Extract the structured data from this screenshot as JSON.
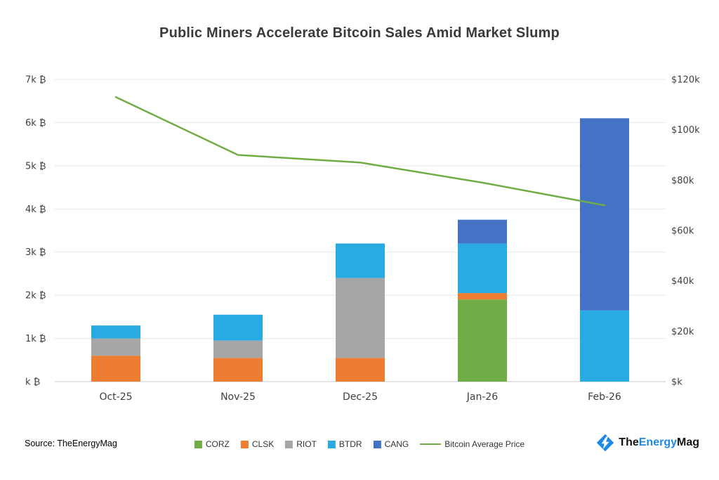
{
  "title": "Public Miners Accelerate Bitcoin Sales Amid Market Slump",
  "source_label": "Source: TheEnergyMag",
  "logo": {
    "part1": "The",
    "part2": "Energy",
    "part3": "Mag"
  },
  "chart_data": {
    "type": "bar",
    "stacked": true,
    "grid": "horizontal",
    "legend_position": "bottom",
    "categories": [
      "Oct-25",
      "Nov-25",
      "Dec-25",
      "Jan-26",
      "Feb-26"
    ],
    "series": [
      {
        "name": "CORZ",
        "color": "#70AD47",
        "values": [
          0,
          0,
          0,
          1.9,
          0
        ]
      },
      {
        "name": "CLSK",
        "color": "#ED7D31",
        "values": [
          0.6,
          0.55,
          0.55,
          0.15,
          0
        ]
      },
      {
        "name": "RIOT",
        "color": "#A6A6A6",
        "values": [
          0.4,
          0.4,
          1.85,
          0,
          0
        ]
      },
      {
        "name": "BTDR",
        "color": "#29ABE2",
        "values": [
          0.3,
          0.6,
          0.8,
          1.15,
          1.65
        ]
      },
      {
        "name": "CANG",
        "color": "#4472C4",
        "values": [
          0,
          0,
          0,
          0.55,
          4.45
        ]
      }
    ],
    "line_series": {
      "name": "Bitcoin Average Price",
      "color": "#70AD47",
      "axis": "right",
      "values": [
        113,
        90,
        87,
        79,
        70
      ]
    },
    "left_axis": {
      "unit": "k ₿",
      "min": 0,
      "max": 7,
      "tick_labels": [
        "7k ₿",
        "6k ₿",
        "5k ₿",
        "4k ₿",
        "3k ₿",
        "2k ₿",
        "1k ₿",
        "k ₿"
      ]
    },
    "right_axis": {
      "unit": "$k",
      "min": 0,
      "max": 120,
      "tick_labels": [
        "$120k",
        "$100k",
        "$80k",
        "$60k",
        "$40k",
        "$20k",
        "$k"
      ]
    }
  }
}
